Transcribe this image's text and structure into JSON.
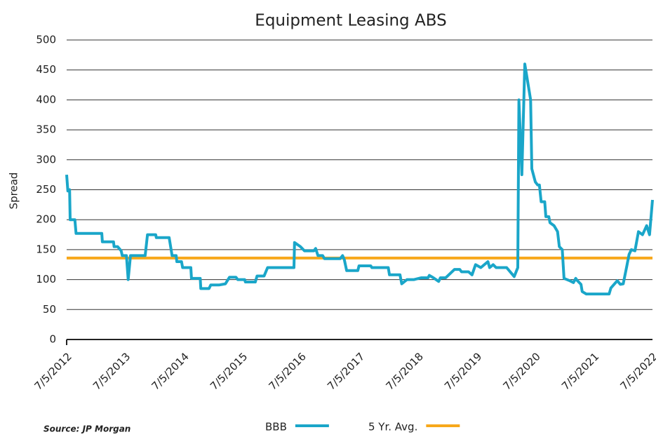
{
  "chart_data": {
    "type": "line",
    "title": "Equipment Leasing ABS",
    "y_label": "Spread",
    "source": "Source: JP Morgan",
    "xlim": [
      2012.5,
      2022.5
    ],
    "xticks": [
      {
        "value": 2012.51,
        "label": "7/5/2012"
      },
      {
        "value": 2013.51,
        "label": "7/5/2013"
      },
      {
        "value": 2014.51,
        "label": "7/5/2014"
      },
      {
        "value": 2015.51,
        "label": "7/5/2015"
      },
      {
        "value": 2016.51,
        "label": "7/5/2016"
      },
      {
        "value": 2017.51,
        "label": "7/5/2017"
      },
      {
        "value": 2018.51,
        "label": "7/5/2018"
      },
      {
        "value": 2019.51,
        "label": "7/5/2019"
      },
      {
        "value": 2020.51,
        "label": "7/5/2020"
      },
      {
        "value": 2021.51,
        "label": "7/5/2021"
      },
      {
        "value": 2022.51,
        "label": "7/5/2022"
      }
    ],
    "ylim": [
      0,
      500
    ],
    "yticks": [
      0,
      50,
      100,
      150,
      200,
      250,
      300,
      350,
      400,
      450,
      500
    ],
    "grid": true,
    "x": [
      2012.5,
      2012.52,
      2012.55,
      2012.56,
      2012.64,
      2012.66,
      2013.1,
      2013.11,
      2013.3,
      2013.31,
      2013.37,
      2013.43,
      2013.45,
      2013.52,
      2013.55,
      2013.59,
      2013.84,
      2013.88,
      2014.02,
      2014.03,
      2014.25,
      2014.3,
      2014.37,
      2014.38,
      2014.46,
      2014.48,
      2014.62,
      2014.63,
      2014.78,
      2014.79,
      2014.93,
      2014.96,
      2015.1,
      2015.21,
      2015.28,
      2015.39,
      2015.42,
      2015.54,
      2015.55,
      2015.72,
      2015.75,
      2015.87,
      2015.93,
      2016.38,
      2016.39,
      2016.49,
      2016.56,
      2016.72,
      2016.75,
      2016.79,
      2016.87,
      2016.9,
      2017.17,
      2017.21,
      2017.24,
      2017.28,
      2017.47,
      2017.49,
      2017.69,
      2017.71,
      2017.99,
      2018.01,
      2018.19,
      2018.22,
      2018.31,
      2018.43,
      2018.55,
      2018.67,
      2018.69,
      2018.76,
      2018.85,
      2018.88,
      2018.97,
      2019.12,
      2019.21,
      2019.24,
      2019.36,
      2019.42,
      2019.48,
      2019.57,
      2019.69,
      2019.72,
      2019.78,
      2019.83,
      2020.01,
      2020.14,
      2020.2,
      2020.22,
      2020.27,
      2020.32,
      2020.42,
      2020.44,
      2020.5,
      2020.54,
      2020.57,
      2020.6,
      2020.66,
      2020.68,
      2020.73,
      2020.75,
      2020.82,
      2020.88,
      2020.91,
      2020.96,
      2020.99,
      2021.09,
      2021.15,
      2021.19,
      2021.22,
      2021.28,
      2021.3,
      2021.37,
      2021.76,
      2021.79,
      2021.87,
      2021.9,
      2021.95,
      2022.0,
      2022.06,
      2022.1,
      2022.14,
      2022.2,
      2022.26,
      2022.33,
      2022.4,
      2022.45,
      2022.5
    ],
    "series": [
      {
        "name": "BBB",
        "color": "#1aa6c9",
        "values": [
          275,
          248,
          250,
          200,
          200,
          177,
          177,
          163,
          163,
          155,
          155,
          148,
          140,
          140,
          100,
          140,
          140,
          175,
          175,
          170,
          170,
          140,
          140,
          130,
          130,
          120,
          120,
          102,
          102,
          85,
          85,
          91,
          91,
          93,
          104,
          104,
          100,
          100,
          96,
          96,
          106,
          106,
          120,
          120,
          162,
          155,
          148,
          148,
          152,
          140,
          140,
          135,
          135,
          140,
          133,
          115,
          115,
          123,
          123,
          120,
          120,
          108,
          108,
          93,
          100,
          100,
          103,
          103,
          107,
          103,
          97,
          103,
          103,
          117,
          117,
          113,
          113,
          108,
          125,
          120,
          130,
          120,
          125,
          120,
          120,
          105,
          120,
          400,
          275,
          460,
          400,
          285,
          263,
          258,
          258,
          230,
          230,
          205,
          205,
          195,
          190,
          180,
          155,
          150,
          102,
          98,
          95,
          102,
          98,
          92,
          80,
          76,
          76,
          86,
          95,
          98,
          92,
          93,
          122,
          142,
          150,
          148,
          180,
          175,
          190,
          175,
          233
        ]
      }
    ],
    "reference_lines": [
      {
        "name": "5 Yr. Avg.",
        "color": "#f7a81b",
        "value": 136
      }
    ]
  }
}
